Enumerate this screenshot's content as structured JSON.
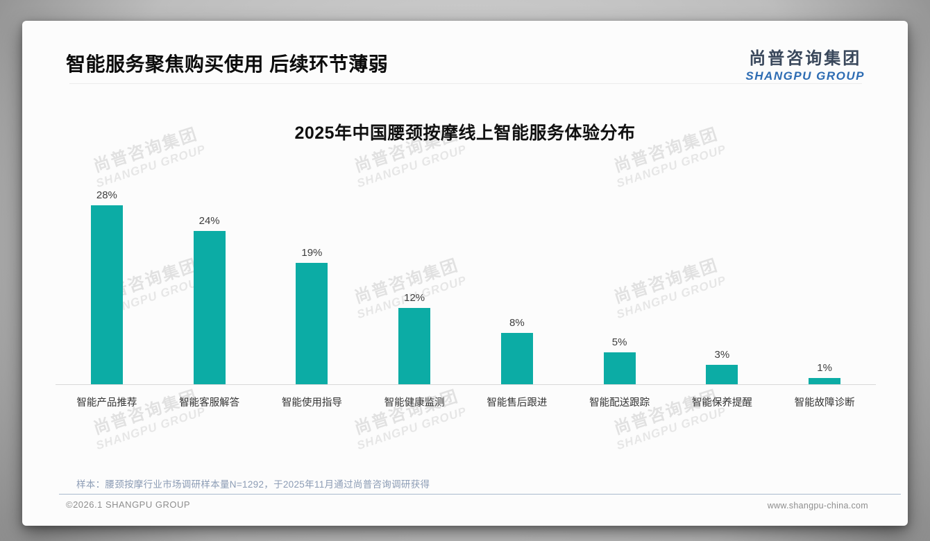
{
  "header": {
    "title": "智能服务聚焦购买使用 后续环节薄弱"
  },
  "logo": {
    "cn": "尚普咨询集团",
    "en": "SHANGPU GROUP"
  },
  "watermark": {
    "cn": "尚普咨询集团",
    "en": "SHANGPU GROUP"
  },
  "chart_data": {
    "type": "bar",
    "title": "2025年中国腰颈按摩线上智能服务体验分布",
    "categories": [
      "智能产品推荐",
      "智能客服解答",
      "智能使用指导",
      "智能健康监测",
      "智能售后跟进",
      "智能配送跟踪",
      "智能保养提醒",
      "智能故障诊断"
    ],
    "values": [
      28,
      24,
      19,
      12,
      8,
      5,
      3,
      1
    ],
    "unit": "%",
    "value_labels": [
      "28%",
      "24%",
      "19%",
      "12%",
      "8%",
      "5%",
      "3%",
      "1%"
    ],
    "bar_color": "#0caca5",
    "ylim": [
      0,
      30
    ],
    "grid": false,
    "legend": false,
    "xlabel": "",
    "ylabel": ""
  },
  "note": "样本：腰颈按摩行业市场调研样本量N=1292，于2025年11月通过尚普咨询调研获得",
  "footer": {
    "left": "©2026.1 SHANGPU GROUP",
    "right": "www.shangpu-china.com"
  }
}
